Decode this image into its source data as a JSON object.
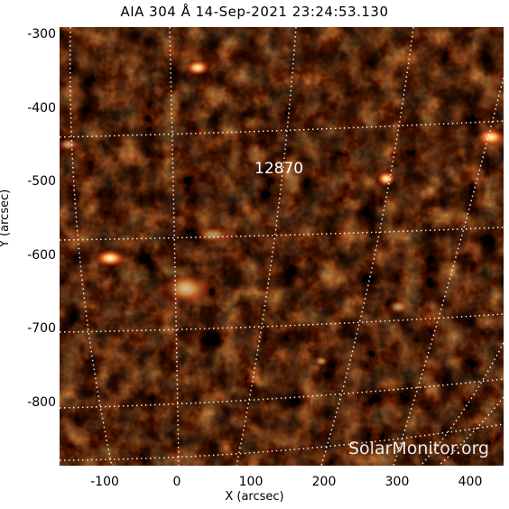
{
  "title": "AIA 304 Å 14-Sep-2021 23:24:53.130",
  "axes": {
    "xlabel": "X (arcsec)",
    "ylabel": "Y (arcsec)",
    "xticks": [
      "-100",
      "0",
      "100",
      "200",
      "300",
      "400"
    ],
    "yticks": [
      "-300",
      "-400",
      "-500",
      "-600",
      "-700",
      "-800"
    ]
  },
  "region_label": "12870",
  "watermark": "SolarMonitor.org",
  "colors": {
    "background": "#000000",
    "flare_bright": "#ffffe0",
    "emission": "#c8321a",
    "grid": "#ffffff"
  }
}
